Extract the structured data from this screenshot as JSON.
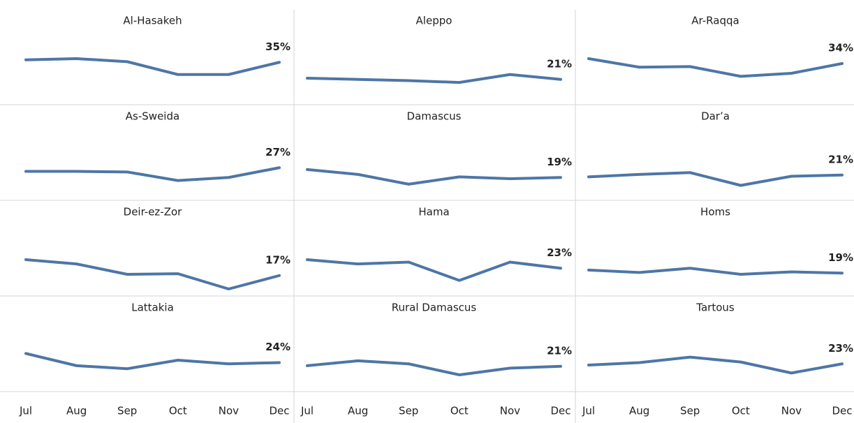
{
  "chart_data": {
    "type": "line",
    "color": "#4e76a6",
    "categories": [
      "Jul",
      "Aug",
      "Sep",
      "Oct",
      "Nov",
      "Dec"
    ],
    "ylim": [
      0,
      78
    ],
    "panels": [
      {
        "name": "Al-Hasakeh",
        "values": [
          37,
          38,
          35.5,
          25,
          25,
          35
        ],
        "value_labels": [
          null,
          null,
          null,
          null,
          null,
          "35%"
        ]
      },
      {
        "name": "Aleppo",
        "values": [
          22,
          21,
          20,
          18.5,
          25,
          21
        ],
        "value_labels": [
          null,
          null,
          null,
          null,
          null,
          "21%"
        ]
      },
      {
        "name": "Ar-Raqqa",
        "values": [
          38,
          31,
          31.5,
          23.5,
          26,
          34
        ],
        "value_labels": [
          null,
          null,
          null,
          null,
          null,
          "34%"
        ]
      },
      {
        "name": "As-Sweida",
        "values": [
          24,
          24,
          23.5,
          16.5,
          19,
          27
        ],
        "value_labels": [
          null,
          null,
          null,
          null,
          null,
          "27%"
        ]
      },
      {
        "name": "Damascus",
        "values": [
          25.5,
          21.5,
          13.5,
          19.5,
          18,
          19
        ],
        "value_labels": [
          null,
          null,
          null,
          null,
          null,
          "19%"
        ]
      },
      {
        "name": "Dar’a",
        "values": [
          19.5,
          21.5,
          23,
          12.5,
          20,
          21
        ],
        "value_labels": [
          null,
          null,
          null,
          null,
          null,
          "21%"
        ]
      },
      {
        "name": "Deir-ez-Zor",
        "values": [
          30,
          26.5,
          18,
          18.5,
          6,
          17
        ],
        "value_labels": [
          null,
          null,
          null,
          null,
          null,
          "17%"
        ]
      },
      {
        "name": "Hama",
        "values": [
          30,
          26.5,
          28,
          13,
          28,
          23
        ],
        "value_labels": [
          null,
          null,
          null,
          null,
          null,
          "23%"
        ]
      },
      {
        "name": "Homs",
        "values": [
          21.5,
          19.5,
          23,
          18,
          20,
          19
        ],
        "value_labels": [
          null,
          null,
          null,
          null,
          null,
          "19%"
        ]
      },
      {
        "name": "Lattakia",
        "values": [
          31.5,
          21.5,
          19,
          26,
          23,
          24
        ],
        "value_labels": [
          null,
          null,
          null,
          null,
          null,
          "24%"
        ]
      },
      {
        "name": "Rural Damascus",
        "values": [
          21.5,
          25.5,
          23,
          14,
          19.5,
          21
        ],
        "value_labels": [
          null,
          null,
          null,
          null,
          null,
          "21%"
        ]
      },
      {
        "name": "Tartous",
        "values": [
          22,
          24,
          28.5,
          24.5,
          15.5,
          23
        ],
        "value_labels": [
          null,
          null,
          null,
          null,
          null,
          "23%"
        ]
      }
    ]
  }
}
